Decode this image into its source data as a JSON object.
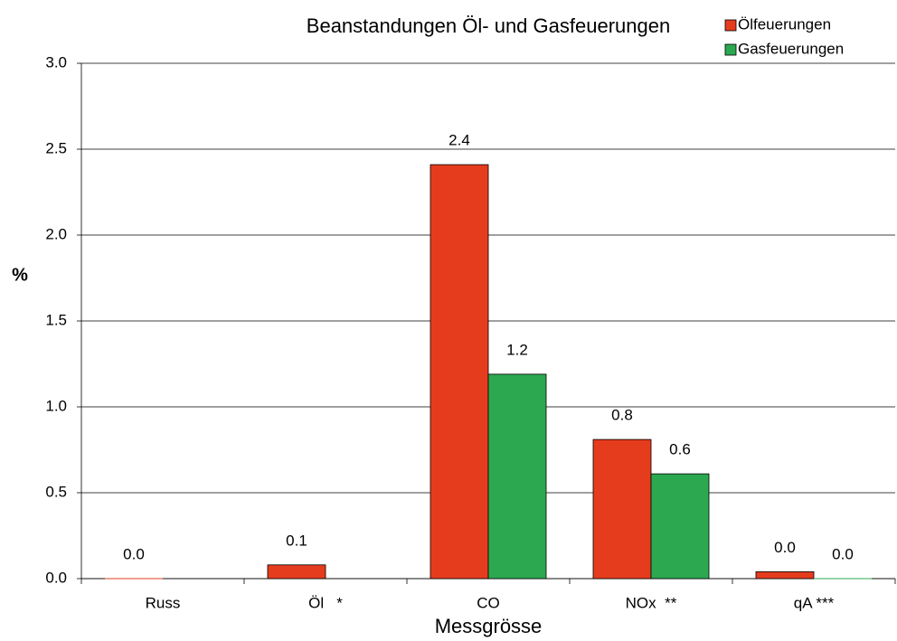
{
  "chart_data": {
    "type": "bar",
    "title": "Beanstandungen Öl- und Gasfeuerungen",
    "x_label": "Messgrösse",
    "y_label": "%",
    "categories": [
      "Russ",
      "Öl   *",
      "CO",
      "NOx  **",
      "qA ***"
    ],
    "series": [
      {
        "name": "Ölfeuerungen",
        "color": "#e63c1e",
        "values": [
          0,
          0.08,
          2.41,
          0.81,
          0.04
        ],
        "value_labels": [
          "0.0",
          "0.1",
          "2.4",
          "0.8",
          "0.0"
        ]
      },
      {
        "name": "Gasfeuerungen",
        "color": "#2ca850",
        "values": [
          null,
          null,
          1.19,
          0.61,
          0
        ],
        "value_labels": [
          null,
          null,
          "1.2",
          "0.6",
          "0.0"
        ]
      }
    ],
    "ylim": [
      0,
      3
    ],
    "yticks": [
      {
        "value": 0,
        "label": "0.0"
      },
      {
        "value": 0.5,
        "label": "0.5"
      },
      {
        "value": 1,
        "label": "1.0"
      },
      {
        "value": 1.5,
        "label": "1.5"
      },
      {
        "value": 2,
        "label": "2.0"
      },
      {
        "value": 2.5,
        "label": "2.5"
      },
      {
        "value": 3,
        "label": "3.0"
      }
    ],
    "grid": true,
    "legend": "top-right"
  }
}
